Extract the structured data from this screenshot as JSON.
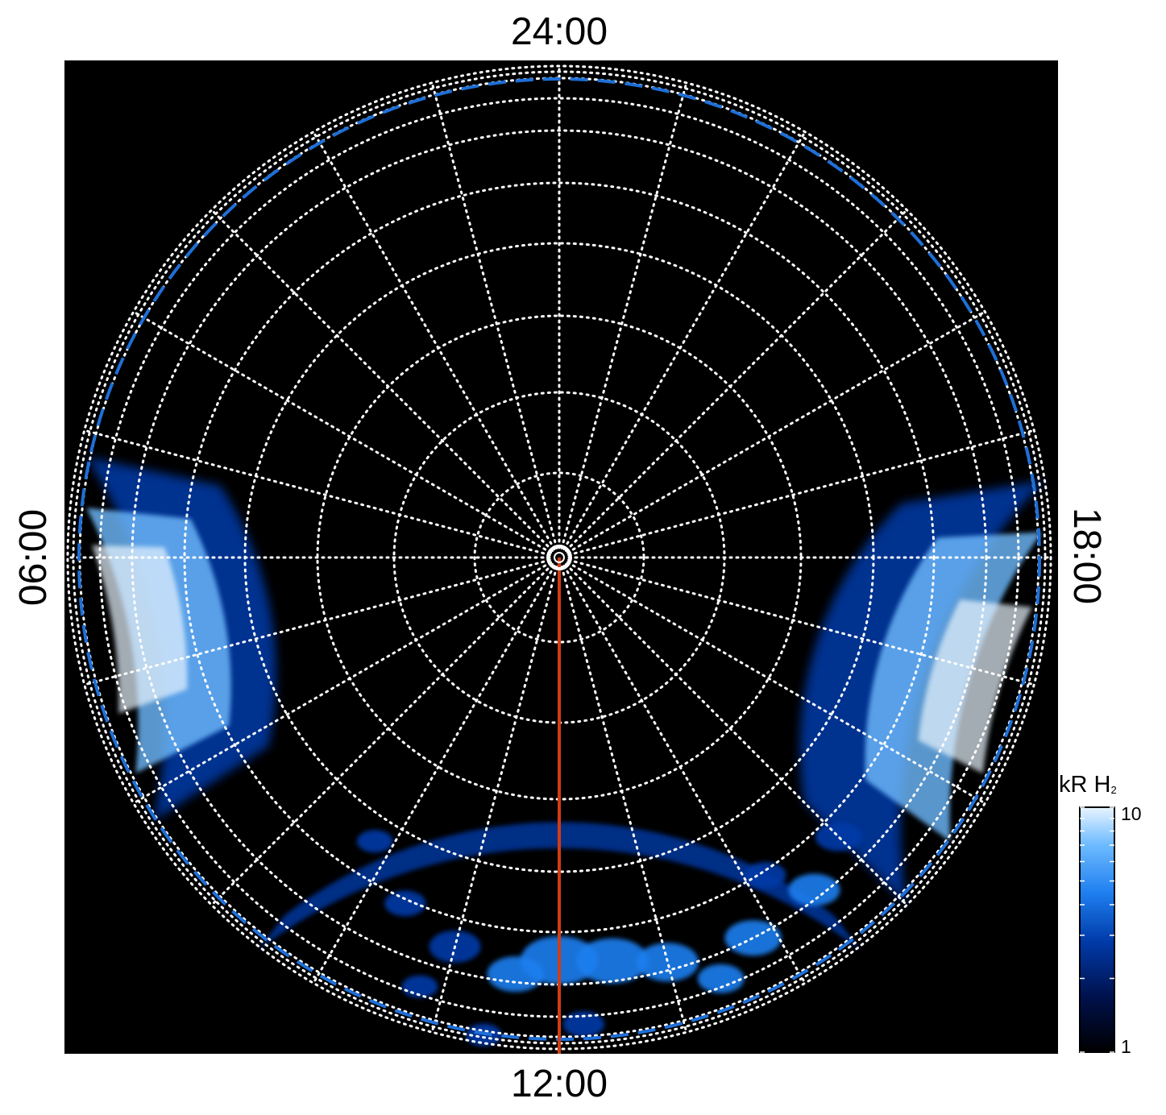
{
  "colors": {
    "background": "#000000",
    "grid": "#ffffff",
    "boundary_dashed": "#1f6fd6",
    "meridian_line": "#d23c14",
    "colormap": [
      "#000000",
      "#00104a",
      "#003aa8",
      "#1f7ff0",
      "#6fbcff",
      "#e8f4ff"
    ]
  },
  "chart_data": {
    "type": "heatmap",
    "projection": "polar",
    "local_time_labels": {
      "top": "24:00",
      "bottom": "12:00",
      "left": "06:00",
      "right": "18:00"
    },
    "grid": true,
    "meridian_spacing_hours": 1,
    "colorbar": {
      "title": "kR H",
      "title_subscript": "2",
      "min_label": "1",
      "max_label": "10",
      "scale": "log",
      "range": [
        1,
        10
      ],
      "placement": "right"
    },
    "highlighted_meridian": "12:00",
    "emission_regions": [
      {
        "local_time_center": "07:00",
        "brightness_kR": 9
      },
      {
        "local_time_center": "16:30",
        "brightness_kR": 9
      },
      {
        "local_time_center": "12:00",
        "brightness_kR": 5
      },
      {
        "local_time_center": "10:00",
        "brightness_kR": 3
      },
      {
        "local_time_center": "14:00",
        "brightness_kR": 4
      }
    ]
  }
}
